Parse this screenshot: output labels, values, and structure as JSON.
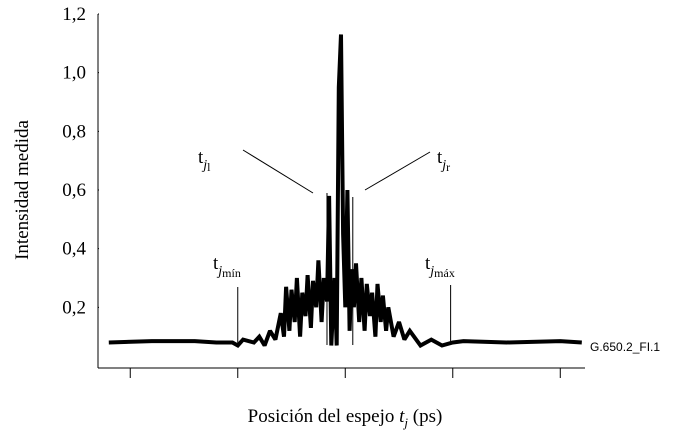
{
  "chart_data": {
    "type": "line",
    "y_label": "Intensidad medida",
    "x_label": {
      "before": "Posición del espejo ",
      "var": "t",
      "sub": "j",
      "after": " (ps)"
    },
    "figure_id": "G.650.2_FI.1",
    "xlim": [
      -2.3,
      2.23
    ],
    "xticks": [
      -2,
      -1,
      0,
      1,
      2
    ],
    "ylim": [
      0,
      1.2
    ],
    "yticks": [
      {
        "value": 0.2,
        "label": "0,2"
      },
      {
        "value": 0.4,
        "label": "0,4"
      },
      {
        "value": 0.6,
        "label": "0,6"
      },
      {
        "value": 0.8,
        "label": "0,8"
      },
      {
        "value": 1.0,
        "label": "1,0"
      },
      {
        "value": 1.2,
        "label": "1,2"
      }
    ],
    "color": "#000000",
    "x": [
      -2.2,
      -1.8,
      -1.4,
      -1.2,
      -1.05,
      -1.0,
      -0.95,
      -0.85,
      -0.8,
      -0.75,
      -0.7,
      -0.65,
      -0.6,
      -0.57,
      -0.55,
      -0.52,
      -0.5,
      -0.47,
      -0.45,
      -0.42,
      -0.4,
      -0.37,
      -0.35,
      -0.32,
      -0.3,
      -0.27,
      -0.25,
      -0.22,
      -0.2,
      -0.17,
      -0.15,
      -0.13,
      -0.1,
      -0.08,
      -0.06,
      -0.04,
      -0.02,
      0.0,
      0.02,
      0.04,
      0.06,
      0.08,
      0.1,
      0.13,
      0.15,
      0.18,
      0.2,
      0.23,
      0.25,
      0.28,
      0.3,
      0.33,
      0.35,
      0.38,
      0.4,
      0.45,
      0.5,
      0.55,
      0.6,
      0.7,
      0.8,
      0.9,
      1.0,
      1.1,
      1.5,
      2.0,
      2.2
    ],
    "values": [
      0.08,
      0.085,
      0.085,
      0.08,
      0.08,
      0.07,
      0.09,
      0.08,
      0.1,
      0.07,
      0.12,
      0.09,
      0.18,
      0.1,
      0.27,
      0.12,
      0.26,
      0.15,
      0.3,
      0.1,
      0.25,
      0.17,
      0.31,
      0.13,
      0.29,
      0.2,
      0.36,
      0.15,
      0.3,
      0.22,
      0.58,
      0.07,
      0.3,
      0.07,
      0.95,
      1.13,
      0.45,
      0.2,
      0.6,
      0.12,
      0.33,
      0.2,
      0.35,
      0.15,
      0.3,
      0.12,
      0.28,
      0.17,
      0.25,
      0.1,
      0.28,
      0.15,
      0.24,
      0.12,
      0.2,
      0.1,
      0.15,
      0.09,
      0.12,
      0.07,
      0.09,
      0.07,
      0.08,
      0.085,
      0.08,
      0.085,
      0.08
    ],
    "markers": [
      {
        "label": "t",
        "var": "j",
        "sub": "l",
        "x": -0.17
      },
      {
        "label": "t",
        "var": "j",
        "sub": "r",
        "x": 0.07
      },
      {
        "label": "t",
        "var": "j",
        "sub": "mín",
        "x": -1.0
      },
      {
        "label": "t",
        "var": "j",
        "sub": "máx",
        "x": 0.98
      }
    ]
  }
}
